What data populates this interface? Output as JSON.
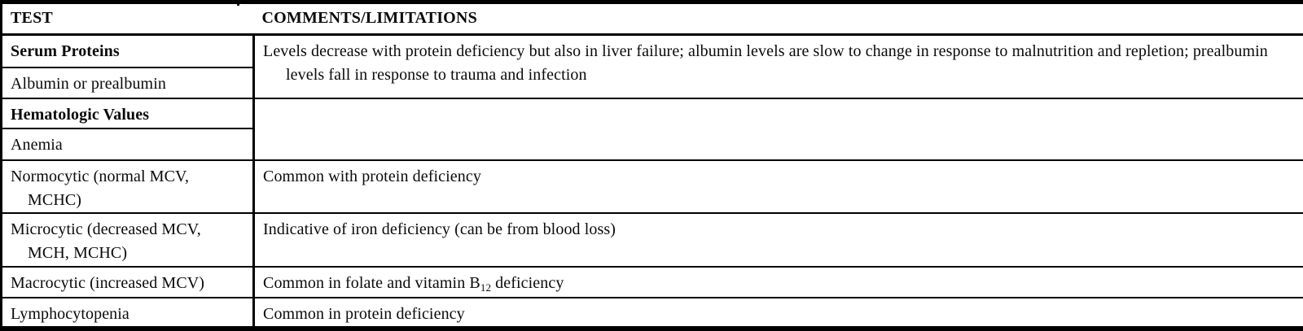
{
  "colors": {
    "background": "#ffffff",
    "text": "#0a0a0a",
    "border": "#000000"
  },
  "table": {
    "header": {
      "test": "TEST",
      "comments": "COMMENTS/LIMITATIONS"
    },
    "rows": [
      {
        "test": "Serum Proteins",
        "comment_lines": [
          "Levels decrease with protein deficiency but also in liver failure; albumin levels are slow to change in response to malnutrition and repletion; prealbumin",
          "levels fall in response to trauma and infection"
        ]
      },
      {
        "test": "Albumin or prealbumin"
      },
      {
        "test": "Hematologic Values",
        "comment": ""
      },
      {
        "test": "Anemia"
      },
      {
        "test_lines": [
          "Normocytic (normal MCV,",
          "MCHC)"
        ],
        "comment": "Common with protein deficiency"
      },
      {
        "test_lines": [
          "Microcytic (decreased MCV,",
          "MCH, MCHC)"
        ],
        "comment": "Indicative of iron deficiency (can be from blood loss)"
      },
      {
        "test": "Macrocytic (increased MCV)",
        "comment_parts": {
          "pre": "Common in folate and vitamin B",
          "sub": "12",
          "post": " deficiency"
        }
      },
      {
        "test": "Lymphocytopenia",
        "comment": "Common in protein deficiency"
      }
    ]
  }
}
